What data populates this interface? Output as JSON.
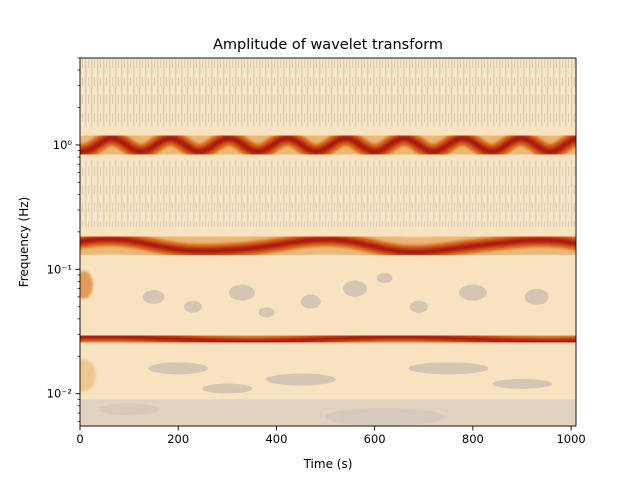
{
  "chart_data": {
    "type": "heatmap",
    "title": "Amplitude of wavelet transform",
    "xlabel": "Time (s)",
    "ylabel": "Frequency (Hz)",
    "xlim": [
      0,
      1010
    ],
    "ylim": [
      0.0055,
      5.0
    ],
    "yscale": "log",
    "x_ticks": [
      0,
      200,
      400,
      600,
      800,
      1000
    ],
    "x_tick_labels": [
      "0",
      "200",
      "400",
      "600",
      "800",
      "1000"
    ],
    "y_ticks": [
      0.01,
      0.1,
      1
    ],
    "y_tick_labels": [
      "10⁻²",
      "10⁻¹",
      "10⁰"
    ],
    "grid": false,
    "colormap": [
      "#c9bfbb",
      "#f7e3c0",
      "#e9b06a",
      "#d96a13",
      "#c8320a",
      "#9e1616"
    ],
    "bands": [
      {
        "center_hz": 1.0,
        "modulation": "sinusoidal",
        "period_s": 119,
        "amplitude_ratio": 1.13
      },
      {
        "center_hz": 0.16,
        "modulation": "slow drift",
        "range_hz": [
          0.13,
          0.18
        ]
      },
      {
        "center_hz": 0.028,
        "modulation": "nearly constant",
        "range_hz": [
          0.026,
          0.029
        ]
      }
    ]
  }
}
